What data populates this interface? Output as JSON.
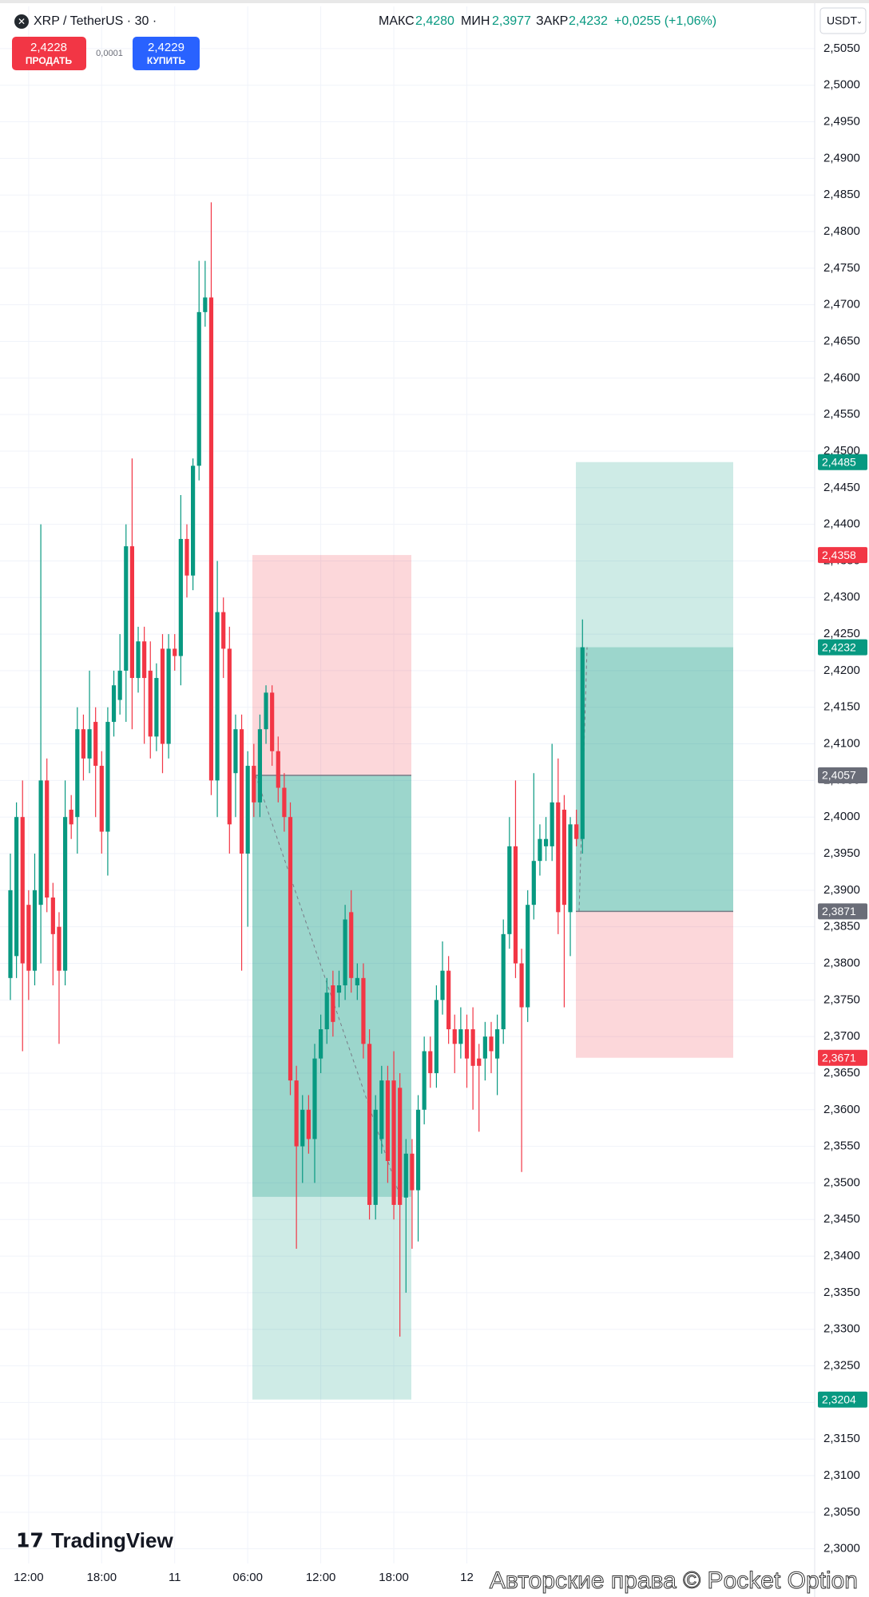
{
  "header": {
    "symbol": "XRP / TetherUS · 30 ·",
    "stats": [
      {
        "label": "МАКС",
        "value": "2,4280"
      },
      {
        "label": "МИН",
        "value": "2,3977"
      },
      {
        "label": "ЗАКР",
        "value": "2,4232"
      }
    ],
    "change": "+0,0255 (+1,06%)"
  },
  "trade_panel": {
    "sell_price": "2,4228",
    "sell_label": "ПРОДАТЬ",
    "spread": "0,0001",
    "buy_price": "2,4229",
    "buy_label": "КУПИТЬ"
  },
  "currency": "USDT",
  "branding": "TradingView",
  "watermark": "Авторские права © Pocket Option",
  "chart_data": {
    "type": "candlestick",
    "up_color": "#089981",
    "down_color": "#f23645",
    "categories": [
      null,
      null,
      null,
      "12:00",
      null,
      null,
      null,
      null,
      null,
      null,
      null,
      null,
      null,
      null,
      null,
      "18:00",
      null,
      null,
      null,
      null,
      null,
      null,
      null,
      null,
      null,
      null,
      null,
      "11",
      null,
      null,
      null,
      null,
      null,
      null,
      null,
      null,
      null,
      null,
      null,
      "06:00",
      null,
      null,
      null,
      null,
      null,
      null,
      null,
      null,
      null,
      null,
      null,
      "12:00",
      null,
      null,
      null,
      null,
      null,
      null,
      null,
      null,
      null,
      null,
      null,
      "18:00",
      null,
      null,
      null,
      null,
      null,
      null,
      null,
      null,
      null,
      null,
      null,
      "12",
      null,
      null,
      null,
      null,
      null,
      null,
      null,
      null,
      null,
      null,
      null,
      null,
      null,
      null,
      null,
      null,
      null,
      null,
      null
    ],
    "open": [
      2.378,
      2.381,
      2.4,
      2.388,
      2.379,
      2.388,
      2.405,
      2.389,
      2.385,
      2.379,
      2.401,
      2.4,
      2.412,
      2.408,
      2.413,
      2.407,
      2.398,
      2.413,
      2.416,
      2.42,
      2.437,
      2.419,
      2.424,
      2.42,
      2.411,
      2.423,
      2.41,
      2.423,
      2.422,
      2.438,
      2.433,
      2.448,
      2.469,
      2.471,
      2.405,
      2.428,
      2.423,
      2.406,
      2.412,
      2.395,
      2.407,
      2.402,
      2.412,
      2.417,
      2.409,
      2.404,
      2.4,
      2.364,
      2.355,
      2.36,
      2.356,
      2.367,
      2.371,
      2.377,
      2.376,
      2.377,
      2.387,
      2.377,
      2.378,
      2.369,
      2.347,
      2.356,
      2.364,
      2.364,
      2.363,
      2.348,
      2.354,
      2.349,
      2.36,
      2.368,
      2.365,
      2.375,
      2.379,
      2.371,
      2.369,
      2.371,
      2.371,
      2.367,
      2.367,
      2.37,
      2.367,
      2.371,
      2.384,
      2.396,
      2.38,
      2.374,
      2.388,
      2.394,
      2.396,
      2.396,
      2.402,
      2.401,
      2.387,
      2.399,
      2.397
    ],
    "high": [
      2.395,
      2.402,
      2.405,
      2.39,
      2.395,
      2.44,
      2.408,
      2.391,
      2.387,
      2.405,
      2.403,
      2.415,
      2.414,
      2.42,
      2.415,
      2.409,
      2.415,
      2.42,
      2.425,
      2.44,
      2.449,
      2.426,
      2.426,
      2.424,
      2.421,
      2.425,
      2.425,
      2.425,
      2.444,
      2.44,
      2.449,
      2.476,
      2.476,
      2.484,
      2.435,
      2.43,
      2.426,
      2.414,
      2.414,
      2.409,
      2.41,
      2.414,
      2.418,
      2.418,
      2.411,
      2.406,
      2.402,
      2.366,
      2.362,
      2.362,
      2.369,
      2.373,
      2.378,
      2.379,
      2.379,
      2.388,
      2.39,
      2.38,
      2.38,
      2.371,
      2.362,
      2.366,
      2.366,
      2.368,
      2.365,
      2.356,
      2.356,
      2.362,
      2.37,
      2.37,
      2.377,
      2.383,
      2.381,
      2.373,
      2.374,
      2.373,
      2.374,
      2.369,
      2.372,
      2.372,
      2.373,
      2.386,
      2.4,
      2.405,
      2.382,
      2.39,
      2.406,
      2.399,
      2.4,
      2.41,
      2.408,
      2.403,
      2.4,
      2.401,
      2.427
    ],
    "low": [
      2.375,
      2.378,
      2.368,
      2.375,
      2.377,
      2.38,
      2.387,
      2.377,
      2.369,
      2.377,
      2.397,
      2.395,
      2.405,
      2.406,
      2.4,
      2.395,
      2.392,
      2.411,
      2.414,
      2.413,
      2.412,
      2.417,
      2.41,
      2.408,
      2.409,
      2.406,
      2.408,
      2.42,
      2.418,
      2.43,
      2.431,
      2.446,
      2.467,
      2.403,
      2.4,
      2.419,
      2.395,
      2.4,
      2.379,
      2.385,
      2.4,
      2.4,
      2.41,
      2.407,
      2.402,
      2.398,
      2.362,
      2.341,
      2.35,
      2.354,
      2.35,
      2.365,
      2.369,
      2.37,
      2.374,
      2.375,
      2.376,
      2.375,
      2.367,
      2.345,
      2.345,
      2.354,
      2.35,
      2.345,
      2.329,
      2.335,
      2.341,
      2.342,
      2.358,
      2.363,
      2.363,
      2.373,
      2.369,
      2.365,
      2.367,
      2.363,
      2.36,
      2.357,
      2.364,
      2.365,
      2.362,
      2.369,
      2.382,
      2.378,
      2.3515,
      2.372,
      2.386,
      2.392,
      2.394,
      2.394,
      2.384,
      2.374,
      2.381,
      2.396,
      2.395
    ],
    "close": [
      2.39,
      2.4,
      2.38,
      2.379,
      2.39,
      2.405,
      2.389,
      2.384,
      2.379,
      2.4,
      2.399,
      2.412,
      2.408,
      2.412,
      2.407,
      2.398,
      2.413,
      2.418,
      2.42,
      2.437,
      2.419,
      2.424,
      2.419,
      2.411,
      2.419,
      2.41,
      2.423,
      2.422,
      2.438,
      2.433,
      2.448,
      2.469,
      2.471,
      2.405,
      2.428,
      2.423,
      2.399,
      2.412,
      2.395,
      2.407,
      2.402,
      2.412,
      2.417,
      2.409,
      2.404,
      2.4,
      2.364,
      2.355,
      2.36,
      2.356,
      2.367,
      2.371,
      2.376,
      2.372,
      2.377,
      2.386,
      2.378,
      2.378,
      2.369,
      2.347,
      2.36,
      2.364,
      2.353,
      2.347,
      2.347,
      2.354,
      2.349,
      2.36,
      2.368,
      2.365,
      2.375,
      2.379,
      2.371,
      2.369,
      2.371,
      2.367,
      2.366,
      2.366,
      2.37,
      2.368,
      2.371,
      2.384,
      2.396,
      2.38,
      2.374,
      2.388,
      2.394,
      2.397,
      2.397,
      2.402,
      2.387,
      2.388,
      2.399,
      2.397,
      2.4232
    ],
    "ylim": [
      2.298,
      2.5075
    ],
    "yticks": [
      {
        "value": 2.3,
        "label": "2,3000"
      },
      {
        "value": 2.305,
        "label": "2,3050"
      },
      {
        "value": 2.31,
        "label": "2,3100"
      },
      {
        "value": 2.315,
        "label": "2,3150"
      },
      {
        "value": 2.32,
        "label": "2,3200"
      },
      {
        "value": 2.325,
        "label": "2,3250"
      },
      {
        "value": 2.33,
        "label": "2,3300"
      },
      {
        "value": 2.335,
        "label": "2,3350"
      },
      {
        "value": 2.34,
        "label": "2,3400"
      },
      {
        "value": 2.345,
        "label": "2,3450"
      },
      {
        "value": 2.35,
        "label": "2,3500"
      },
      {
        "value": 2.355,
        "label": "2,3550"
      },
      {
        "value": 2.36,
        "label": "2,3600"
      },
      {
        "value": 2.365,
        "label": "2,3650"
      },
      {
        "value": 2.37,
        "label": "2,3700"
      },
      {
        "value": 2.375,
        "label": "2,3750"
      },
      {
        "value": 2.38,
        "label": "2,3800"
      },
      {
        "value": 2.385,
        "label": "2,3850"
      },
      {
        "value": 2.39,
        "label": "2,3900"
      },
      {
        "value": 2.395,
        "label": "2,3950"
      },
      {
        "value": 2.4,
        "label": "2,4000"
      },
      {
        "value": 2.405,
        "label": "2,4050"
      },
      {
        "value": 2.41,
        "label": "2,4100"
      },
      {
        "value": 2.415,
        "label": "2,4150"
      },
      {
        "value": 2.42,
        "label": "2,4200"
      },
      {
        "value": 2.425,
        "label": "2,4250"
      },
      {
        "value": 2.43,
        "label": "2,4300"
      },
      {
        "value": 2.435,
        "label": "2,4350"
      },
      {
        "value": 2.44,
        "label": "2,4400"
      },
      {
        "value": 2.445,
        "label": "2,4450"
      },
      {
        "value": 2.45,
        "label": "2,4500"
      },
      {
        "value": 2.455,
        "label": "2,4550"
      },
      {
        "value": 2.46,
        "label": "2,4600"
      },
      {
        "value": 2.465,
        "label": "2,4650"
      },
      {
        "value": 2.47,
        "label": "2,4700"
      },
      {
        "value": 2.475,
        "label": "2,4750"
      },
      {
        "value": 2.48,
        "label": "2,4800"
      },
      {
        "value": 2.485,
        "label": "2,4850"
      },
      {
        "value": 2.49,
        "label": "2,4900"
      },
      {
        "value": 2.495,
        "label": "2,4950"
      },
      {
        "value": 2.5,
        "label": "2,5000"
      },
      {
        "value": 2.505,
        "label": "2,5050"
      }
    ],
    "grid": true,
    "positions": [
      {
        "entry": 2.4057,
        "stop": 2.4358,
        "target": 2.3204,
        "reached": 2.3481
      },
      {
        "entry": 2.3871,
        "stop": 2.3671,
        "target": 2.4485,
        "reached": 2.4232
      }
    ],
    "price_labels": [
      {
        "value": 2.4485,
        "label": "2,4485",
        "color": "#089981"
      },
      {
        "value": 2.4358,
        "label": "2,4358",
        "color": "#f23645"
      },
      {
        "value": 2.4232,
        "label": "2,4232",
        "color": "#089981"
      },
      {
        "value": 2.4057,
        "label": "2,4057",
        "color": "#6a6d78"
      },
      {
        "value": 2.3871,
        "label": "2,3871",
        "color": "#6a6d78"
      },
      {
        "value": 2.3671,
        "label": "2,3671",
        "color": "#f23645"
      },
      {
        "value": 2.3204,
        "label": "2,3204",
        "color": "#089981"
      }
    ]
  }
}
